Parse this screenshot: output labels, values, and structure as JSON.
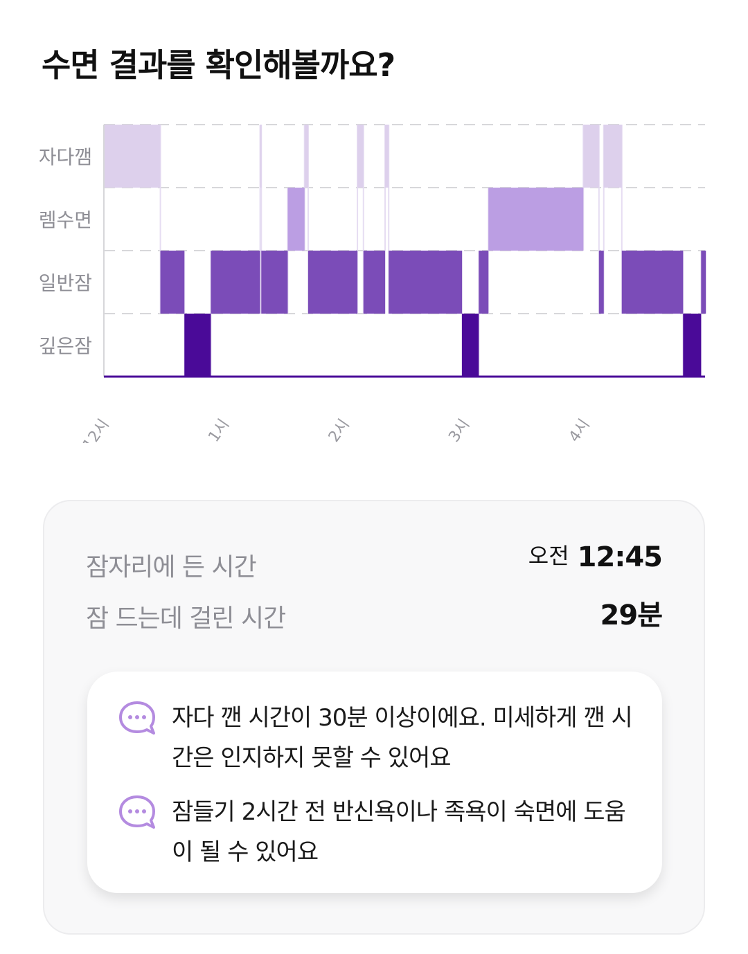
{
  "title": "수면 결과를 확인해볼까요?",
  "chart_data": {
    "type": "timeline",
    "stages": [
      "자다깸",
      "렘수면",
      "일반잠",
      "깊은잠"
    ],
    "x_ticks": [
      "12시",
      "1시",
      "2시",
      "3시",
      "4시"
    ],
    "segments": [
      {
        "stage": "자다깸",
        "start": 0,
        "end": 0.47
      },
      {
        "stage": "일반잠",
        "start": 0.47,
        "end": 0.67
      },
      {
        "stage": "깊은잠",
        "start": 0.67,
        "end": 0.89
      },
      {
        "stage": "일반잠",
        "start": 0.89,
        "end": 1.3
      },
      {
        "stage": "자다깸",
        "start": 1.3,
        "end": 1.31
      },
      {
        "stage": "일반잠",
        "start": 1.31,
        "end": 1.53
      },
      {
        "stage": "렘수면",
        "start": 1.53,
        "end": 1.67
      },
      {
        "stage": "자다깸",
        "start": 1.67,
        "end": 1.7
      },
      {
        "stage": "일반잠",
        "start": 1.7,
        "end": 2.11
      },
      {
        "stage": "자다깸",
        "start": 2.11,
        "end": 2.16
      },
      {
        "stage": "일반잠",
        "start": 2.16,
        "end": 2.34
      },
      {
        "stage": "자다깸",
        "start": 2.34,
        "end": 2.37
      },
      {
        "stage": "일반잠",
        "start": 2.37,
        "end": 2.98
      },
      {
        "stage": "깊은잠",
        "start": 2.98,
        "end": 3.12
      },
      {
        "stage": "일반잠",
        "start": 3.12,
        "end": 3.2
      },
      {
        "stage": "렘수면",
        "start": 3.2,
        "end": 3.99
      },
      {
        "stage": "자다깸",
        "start": 3.99,
        "end": 4.12
      },
      {
        "stage": "일반잠",
        "start": 4.12,
        "end": 4.16
      },
      {
        "stage": "자다깸",
        "start": 4.16,
        "end": 4.31
      },
      {
        "stage": "일반잠",
        "start": 4.31,
        "end": 4.82
      },
      {
        "stage": "깊은잠",
        "start": 4.82,
        "end": 4.97
      },
      {
        "stage": "일반잠",
        "start": 4.97,
        "end": 5.01
      }
    ],
    "colors": {
      "자다깸": "#ddd0ec",
      "렘수면": "#bb9ee3",
      "일반잠": "#7b4cb8",
      "깊은잠": "#4a0a98"
    }
  },
  "summary": {
    "bedtime_label": "잠자리에 든 시간",
    "bedtime_prefix": "오전",
    "bedtime_value": "12:45",
    "latency_label": "잠 드는데 걸린 시간",
    "latency_value": "29분"
  },
  "tips": [
    {
      "text": "자다 깬 시간이 30분 이상이에요. 미세하게 깬 시간은 인지하지 못할 수 있어요",
      "icon": "chat-bubble-icon"
    },
    {
      "text": "잠들기 2시간 전 반신욕이나 족욕이 숙면에 도움이 될 수 있어요",
      "icon": "chat-bubble-icon"
    }
  ],
  "accent_color": "#b48be0"
}
